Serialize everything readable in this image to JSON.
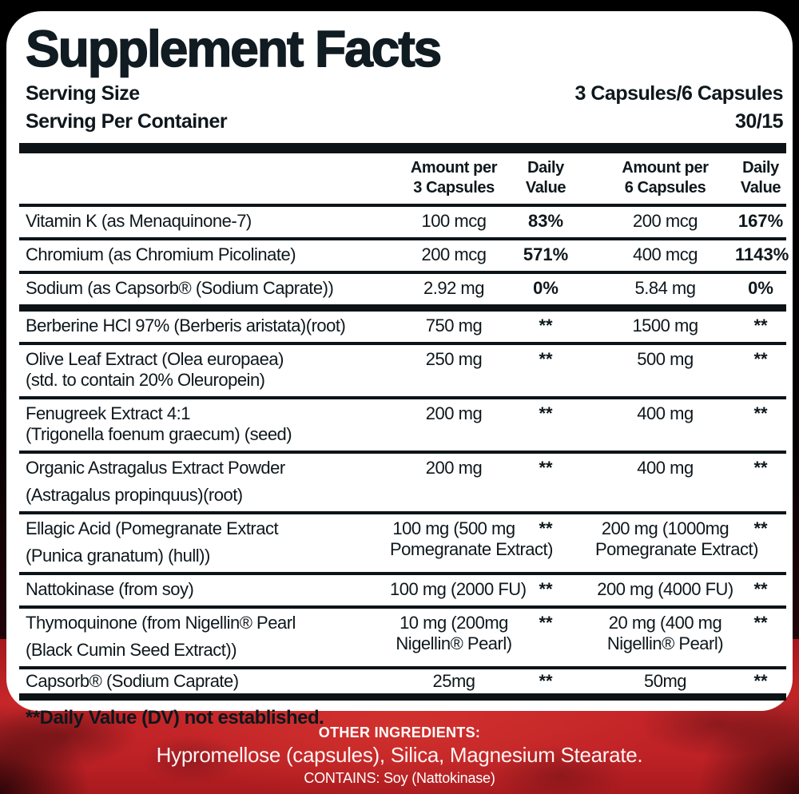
{
  "panel": {
    "title": "Supplement Facts",
    "serving_size_label": "Serving Size",
    "serving_size_value": "3 Capsules/6 Capsules",
    "servings_per_container_label": "Serving Per Container",
    "servings_per_container_value": "30/15"
  },
  "table": {
    "headers": {
      "amt3": [
        "Amount per",
        "3 Capsules"
      ],
      "dv3": [
        "Daily",
        "Value"
      ],
      "amt6": [
        "Amount per",
        "6 Capsules"
      ],
      "dv6": [
        "Daily",
        "Value"
      ]
    },
    "rows": [
      {
        "name": [
          "Vitamin K (as Menaquinone-7)"
        ],
        "amt3": [
          "100 mcg"
        ],
        "dv3": [
          "83%"
        ],
        "amt6": [
          "200 mcg"
        ],
        "dv6": [
          "167%"
        ],
        "divider_after": "normal",
        "style": ""
      },
      {
        "name": [
          "Chromium (as Chromium Picolinate)"
        ],
        "amt3": [
          "200 mcg"
        ],
        "dv3": [
          "571%"
        ],
        "amt6": [
          "400 mcg"
        ],
        "dv6": [
          "1143%"
        ],
        "divider_after": "normal",
        "style": ""
      },
      {
        "name": [
          "Sodium (as Capsorb® (Sodium Caprate))"
        ],
        "amt3": [
          "2.92 mg"
        ],
        "dv3": [
          "0%"
        ],
        "amt6": [
          "5.84 mg"
        ],
        "dv6": [
          "0%"
        ],
        "divider_after": "thick",
        "style": ""
      },
      {
        "name": [
          "Berberine HCl 97% (Berberis aristata)(root)"
        ],
        "amt3": [
          "750 mg"
        ],
        "dv3": [
          "**"
        ],
        "amt6": [
          "1500 mg"
        ],
        "dv6": [
          "**"
        ],
        "divider_after": "normal",
        "style": ""
      },
      {
        "name": [
          "Olive Leaf Extract (Olea europaea)",
          "(std. to  contain 20% Oleuropein)"
        ],
        "amt3": [
          "250 mg"
        ],
        "dv3": [
          "**"
        ],
        "amt6": [
          "500 mg"
        ],
        "dv6": [
          "**"
        ],
        "divider_after": "normal",
        "style": ""
      },
      {
        "name": [
          "Fenugreek Extract 4:1",
          "(Trigonella foenum graecum) (seed)"
        ],
        "amt3": [
          "200 mg"
        ],
        "dv3": [
          "**"
        ],
        "amt6": [
          "400 mg"
        ],
        "dv6": [
          "**"
        ],
        "divider_after": "normal",
        "style": ""
      },
      {
        "name": [
          "Organic Astragalus Extract Powder",
          "(Astragalus propinquus)(root)"
        ],
        "amt3": [
          "200 mg"
        ],
        "dv3": [
          "**"
        ],
        "amt6": [
          "400 mg"
        ],
        "dv6": [
          "**"
        ],
        "divider_after": "normal",
        "style": "tall"
      },
      {
        "name": [
          "Ellagic Acid (Pomegranate Extract",
          "(Punica granatum) (hull))"
        ],
        "amt3": [
          "100 mg (500 mg",
          "Pomegranate Extract)"
        ],
        "dv3": [
          "**"
        ],
        "amt6": [
          "200 mg (1000mg",
          "Pomegranate Extract)"
        ],
        "dv6": [
          "**"
        ],
        "divider_after": "normal",
        "style": "tall"
      },
      {
        "name": [
          "Nattokinase (from soy)"
        ],
        "amt3": [
          "100 mg (2000 FU)"
        ],
        "dv3": [
          "**"
        ],
        "amt6": [
          "200 mg (4000 FU)"
        ],
        "dv6": [
          "**"
        ],
        "divider_after": "normal",
        "style": ""
      },
      {
        "name": [
          "Thymoquinone (from Nigellin® Pearl",
          "(Black Cumin Seed Extract))"
        ],
        "amt3": [
          "10 mg (200mg",
          "Nigellin® Pearl)"
        ],
        "dv3": [
          "**"
        ],
        "amt6": [
          "20 mg (400 mg",
          "Nigellin® Pearl)"
        ],
        "dv6": [
          "**"
        ],
        "divider_after": "normal",
        "style": "tall"
      },
      {
        "name": [
          "Capsorb® (Sodium Caprate)"
        ],
        "amt3": [
          "25mg"
        ],
        "dv3": [
          "**"
        ],
        "amt6": [
          "50mg"
        ],
        "dv6": [
          "**"
        ],
        "divider_after": "thick",
        "style": "compact"
      }
    ]
  },
  "footnote": "**Daily Value (DV) not established.",
  "other_ingredients": {
    "label": "OTHER INGREDIENTS:",
    "items": "Hypromellose (capsules), Silica,  Magnesium Stearate.",
    "contains": "CONTAINS: Soy (Nattokinase)"
  },
  "colors": {
    "accent_red": "#c62629",
    "panel_bg": "#ffffff",
    "text": "#0e171c"
  }
}
